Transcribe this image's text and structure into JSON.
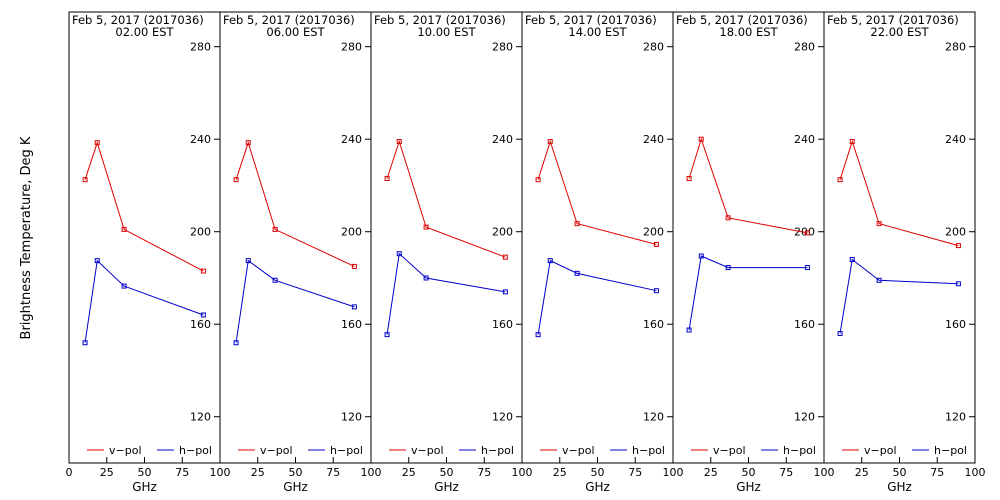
{
  "ylabel": "Brightness Temperature, Deg K",
  "colors": {
    "v_pol": "#dd0000",
    "h_pol": "#0000cc",
    "axes": "#000000"
  },
  "chart_data": [
    {
      "type": "line",
      "title": "Feb  5, 2017 (2017036)",
      "subtitle": "02.00 EST",
      "xlabel": "GHz",
      "xlim": [
        0,
        100
      ],
      "ylim": [
        100,
        295
      ],
      "xticks": [
        "0",
        "25",
        "50",
        "75",
        "100"
      ],
      "yticks": [
        "120",
        "160",
        "200",
        "240",
        "280"
      ],
      "legend": "bottom",
      "series": [
        {
          "name": "v−pol",
          "color": "#dd0000",
          "x": [
            10.65,
            18.7,
            36.5,
            89.0
          ],
          "y": [
            222.5,
            238.5,
            201.0,
            183.0
          ]
        },
        {
          "name": "h−pol",
          "color": "#0000cc",
          "x": [
            10.65,
            18.7,
            36.5,
            89.0
          ],
          "y": [
            152.0,
            187.5,
            176.5,
            164.0
          ]
        }
      ]
    },
    {
      "type": "line",
      "title": "Feb  5, 2017 (2017036)",
      "subtitle": "06.00 EST",
      "xlabel": "GHz",
      "xlim": [
        0,
        100
      ],
      "ylim": [
        100,
        295
      ],
      "xticks": [
        "25",
        "50",
        "75",
        "100"
      ],
      "yticks": [
        "120",
        "160",
        "200",
        "240",
        "280"
      ],
      "legend": "bottom",
      "series": [
        {
          "name": "v−pol",
          "color": "#dd0000",
          "x": [
            10.65,
            18.7,
            36.5,
            89.0
          ],
          "y": [
            222.5,
            238.5,
            201.0,
            185.0
          ]
        },
        {
          "name": "h−pol",
          "color": "#0000cc",
          "x": [
            10.65,
            18.7,
            36.5,
            89.0
          ],
          "y": [
            152.0,
            187.5,
            179.0,
            167.5
          ]
        }
      ]
    },
    {
      "type": "line",
      "title": "Feb  5, 2017 (2017036)",
      "subtitle": "10.00 EST",
      "xlabel": "GHz",
      "xlim": [
        0,
        100
      ],
      "ylim": [
        100,
        295
      ],
      "xticks": [
        "25",
        "50",
        "75",
        "100"
      ],
      "yticks": [
        "120",
        "160",
        "200",
        "240",
        "280"
      ],
      "legend": "bottom",
      "series": [
        {
          "name": "v−pol",
          "color": "#dd0000",
          "x": [
            10.65,
            18.7,
            36.5,
            89.0
          ],
          "y": [
            223.0,
            239.0,
            202.0,
            189.0
          ]
        },
        {
          "name": "h−pol",
          "color": "#0000cc",
          "x": [
            10.65,
            18.7,
            36.5,
            89.0
          ],
          "y": [
            155.5,
            190.5,
            180.0,
            174.0
          ]
        }
      ]
    },
    {
      "type": "line",
      "title": "Feb  5, 2017 (2017036)",
      "subtitle": "14.00 EST",
      "xlabel": "GHz",
      "xlim": [
        0,
        100
      ],
      "ylim": [
        100,
        295
      ],
      "xticks": [
        "25",
        "50",
        "75",
        "100"
      ],
      "yticks": [
        "120",
        "160",
        "200",
        "240",
        "280"
      ],
      "legend": "bottom",
      "series": [
        {
          "name": "v−pol",
          "color": "#dd0000",
          "x": [
            10.65,
            18.7,
            36.5,
            89.0
          ],
          "y": [
            222.5,
            239.0,
            203.5,
            194.5
          ]
        },
        {
          "name": "h−pol",
          "color": "#0000cc",
          "x": [
            10.65,
            18.7,
            36.5,
            89.0
          ],
          "y": [
            155.5,
            187.5,
            182.0,
            174.5
          ]
        }
      ]
    },
    {
      "type": "line",
      "title": "Feb  5, 2017 (2017036)",
      "subtitle": "18.00 EST",
      "xlabel": "GHz",
      "xlim": [
        0,
        100
      ],
      "ylim": [
        100,
        295
      ],
      "xticks": [
        "25",
        "50",
        "75",
        "100"
      ],
      "yticks": [
        "120",
        "160",
        "200",
        "240",
        "280"
      ],
      "legend": "bottom",
      "series": [
        {
          "name": "v−pol",
          "color": "#dd0000",
          "x": [
            10.65,
            18.7,
            36.5,
            89.0
          ],
          "y": [
            223.0,
            240.0,
            206.0,
            199.5
          ]
        },
        {
          "name": "h−pol",
          "color": "#0000cc",
          "x": [
            10.65,
            18.7,
            36.5,
            89.0
          ],
          "y": [
            157.5,
            189.5,
            184.5,
            184.5
          ]
        }
      ]
    },
    {
      "type": "line",
      "title": "Feb  5, 2017 (2017036)",
      "subtitle": "22.00 EST",
      "xlabel": "GHz",
      "xlim": [
        0,
        100
      ],
      "ylim": [
        100,
        295
      ],
      "xticks": [
        "25",
        "50",
        "75",
        "100"
      ],
      "yticks": [
        "120",
        "160",
        "200",
        "240",
        "280"
      ],
      "legend": "bottom",
      "series": [
        {
          "name": "v−pol",
          "color": "#dd0000",
          "x": [
            10.65,
            18.7,
            36.5,
            89.0
          ],
          "y": [
            222.5,
            239.0,
            203.5,
            194.0
          ]
        },
        {
          "name": "h−pol",
          "color": "#0000cc",
          "x": [
            10.65,
            18.7,
            36.5,
            89.0
          ],
          "y": [
            156.0,
            188.0,
            179.0,
            177.5
          ]
        }
      ]
    }
  ]
}
